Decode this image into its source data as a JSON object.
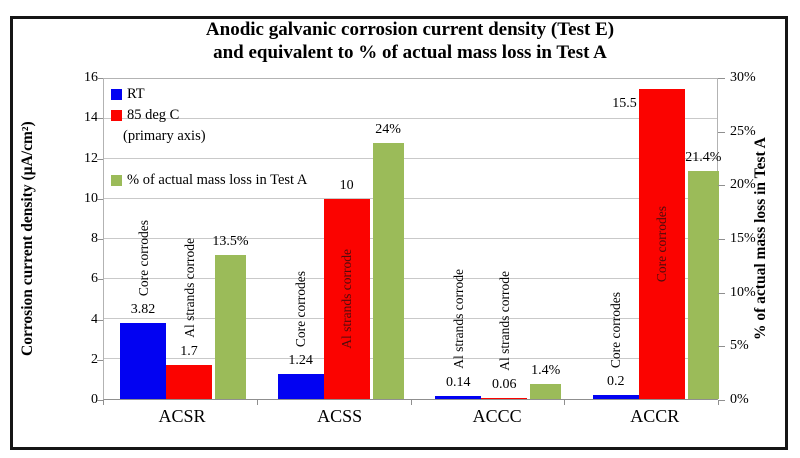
{
  "title": {
    "line1": "Anodic galvanic corrosion current density (Test E)",
    "line2": "and equivalent to % of actual mass loss in Test A"
  },
  "chart_data": {
    "type": "bar",
    "title": "Anodic galvanic corrosion current density (Test E) and equivalent to % of actual mass loss in Test A",
    "categories": [
      "ACSR",
      "ACSS",
      "ACCC",
      "ACCR"
    ],
    "primary_axis": {
      "label": "Corrosion current density (µA/cm²)",
      "min": 0,
      "max": 16,
      "ticks": [
        16,
        14,
        12,
        10,
        8,
        6,
        4,
        2,
        0
      ]
    },
    "secondary_axis": {
      "label": "% of actual mass loss in Test A",
      "min": 0,
      "max": 30,
      "ticks": [
        30,
        25,
        20,
        15,
        10,
        5,
        0
      ],
      "tick_labels": [
        "30%",
        "25%",
        "20%",
        "15%",
        "10%",
        "5%",
        "0%"
      ]
    },
    "series": [
      {
        "name": "RT",
        "axis": "primary",
        "color": "#0202f2",
        "values": [
          3.82,
          1.24,
          0.14,
          0.2
        ],
        "value_labels": [
          "3.82",
          "1.24",
          "0.14",
          "0.2"
        ]
      },
      {
        "name": "85 deg C",
        "axis": "primary",
        "color": "#fb0300",
        "values": [
          1.7,
          10,
          0.06,
          15.5
        ],
        "value_labels": [
          "1.7",
          "10",
          "0.06",
          "15.5"
        ]
      },
      {
        "name": "% of actual mass loss in Test A",
        "axis": "secondary",
        "color": "#9bbb59",
        "values": [
          13.5,
          24,
          1.4,
          21.4
        ],
        "value_labels": [
          "13.5%",
          "24%",
          "1.4%",
          "21.4%"
        ]
      }
    ],
    "bar_notes": [
      {
        "category": "ACSR",
        "notes": [
          "Core corrodes",
          "Al strands corrode",
          ""
        ],
        "note_pos": [
          "above",
          "above",
          ""
        ],
        "value_label_pos": [
          "above",
          "above",
          "above"
        ]
      },
      {
        "category": "ACSS",
        "notes": [
          "Core corrodes",
          "Al strands corrode",
          ""
        ],
        "note_pos": [
          "above",
          "inside",
          ""
        ],
        "value_label_pos": [
          "above",
          "above",
          "above"
        ]
      },
      {
        "category": "ACCC",
        "notes": [
          "Al strands corrode",
          "Al strands corrode",
          ""
        ],
        "note_pos": [
          "above",
          "above",
          ""
        ],
        "value_label_pos": [
          "above",
          "above",
          "above"
        ]
      },
      {
        "category": "ACCR",
        "notes": [
          "Core corrodes",
          "Core corrodes",
          ""
        ],
        "note_pos": [
          "above",
          "inside",
          ""
        ],
        "value_label_pos": [
          "above",
          "left",
          "above"
        ]
      }
    ],
    "legend": {
      "position": "top-left-inside",
      "entries": [
        {
          "label": "RT",
          "swatch": "#0202f2"
        },
        {
          "label": "85 deg C",
          "swatch": "#fb0300"
        },
        {
          "label": "(primary axis)",
          "swatch": ""
        },
        {
          "label": "% of actual mass loss in Test A",
          "swatch": "#9bbb59"
        }
      ]
    },
    "grid": true
  },
  "colors": {
    "grid": "#c9c9c9",
    "plot_border": "#b3b3b3",
    "axis_line": "#8f8f8f",
    "note_text": "#000000",
    "note_inside_text": "#4f0c0c",
    "frame": "#161616",
    "background": "#ffffff"
  }
}
